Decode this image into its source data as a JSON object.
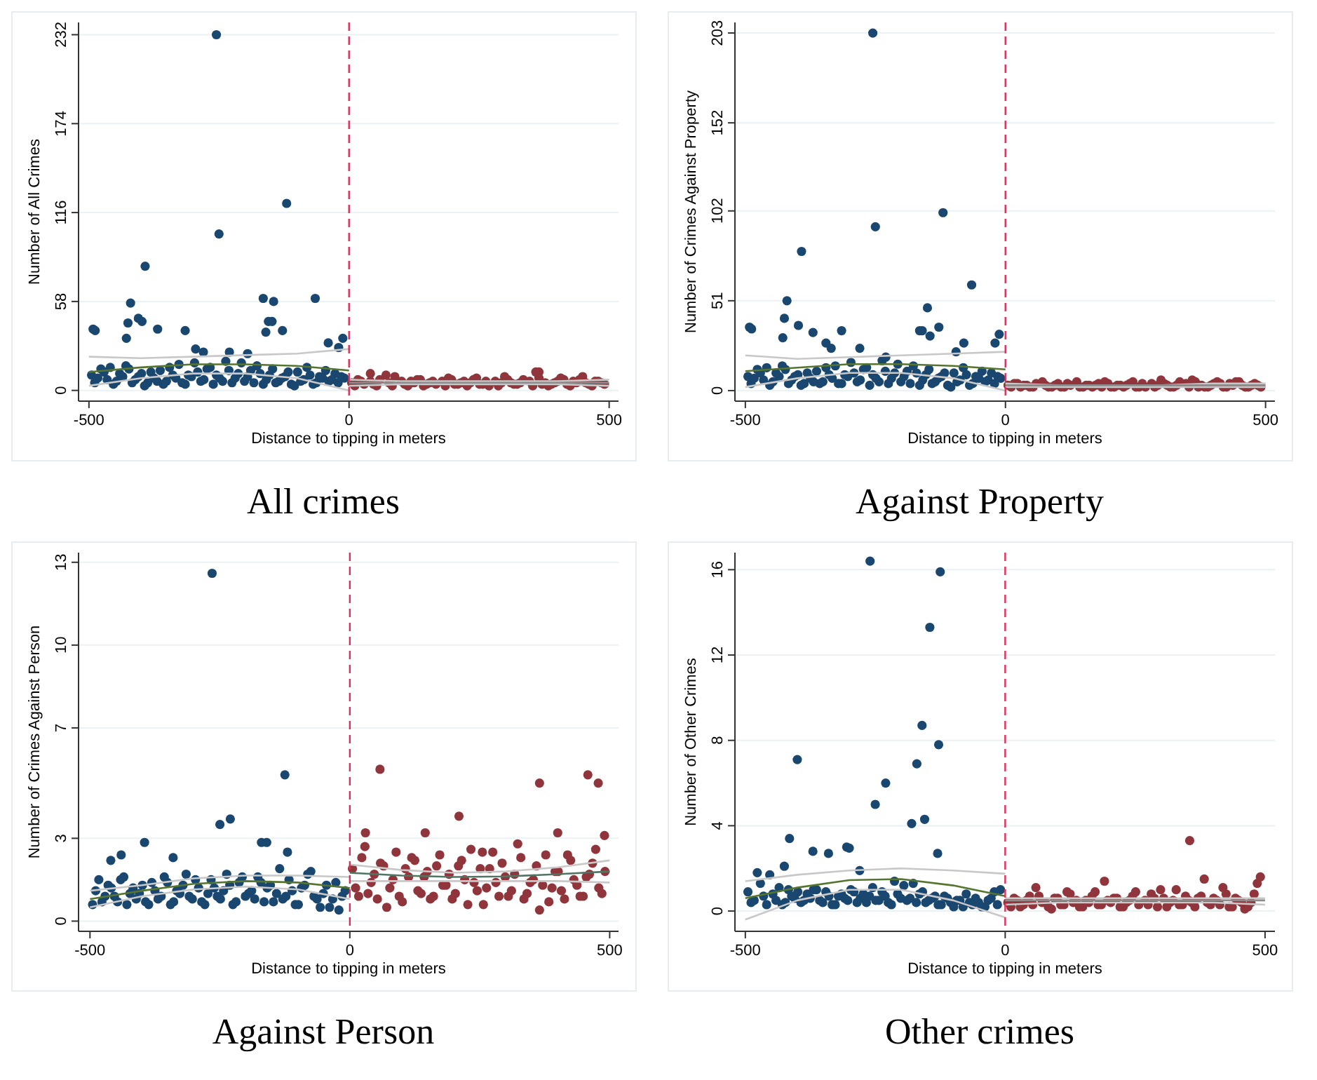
{
  "chart_data": [
    {
      "type": "scatter",
      "title": "All crimes",
      "xlabel": "Distance to tipping in meters",
      "ylabel": "Number of All Crimes",
      "xlim": [
        -520,
        518
      ],
      "xticks": [
        -500,
        0,
        500
      ],
      "ylim": [
        -7,
        240
      ],
      "yticks": [
        0,
        58,
        116,
        174,
        232
      ],
      "grid": "y",
      "ref_lines": [
        {
          "axis": "x",
          "value": 0,
          "color": "#e0305a",
          "line_style": "dashed"
        }
      ],
      "series": [
        {
          "color": "#1a476f",
          "marker": "circle",
          "x": [
            -495,
            -483,
            -471,
            -459,
            -447,
            -435,
            -423,
            -411,
            -399,
            -387,
            -375,
            -363,
            -351,
            -339,
            -327,
            -315,
            -303,
            -291,
            -279,
            -267,
            -255,
            -243,
            -231,
            -219,
            -207,
            -195,
            -183,
            -171,
            -159,
            -147,
            -135,
            -123,
            -111,
            -99,
            -87,
            -75,
            -63,
            -51,
            -39,
            -27,
            -15,
            -489,
            -477,
            -465,
            -453,
            -441,
            -429,
            -417,
            -405,
            -393,
            -381,
            -369,
            -357,
            -345,
            -333,
            -321,
            -309,
            -297,
            -285,
            -273,
            -261,
            -249,
            -237,
            -225,
            -213,
            -201,
            -189,
            -177,
            -165,
            -153,
            -141,
            -129,
            -117,
            -105,
            -93,
            -81,
            -69,
            -57,
            -45,
            -33,
            -21,
            -9,
            -492,
            -488,
            -428,
            -425,
            -420,
            -398,
            -392,
            -405,
            -368,
            -315,
            -295,
            -255,
            -250,
            -120,
            -155,
            -165,
            -148,
            -145,
            -160,
            -128,
            -65,
            -280,
            -12,
            -20,
            -40,
            -195,
            -230
          ],
          "values": [
            10,
            8,
            12,
            15,
            6,
            9,
            14,
            7,
            11,
            5,
            8,
            13,
            6,
            10,
            17,
            4,
            9,
            12,
            7,
            15,
            10,
            6,
            13,
            8,
            18,
            9,
            5,
            11,
            7,
            14,
            6,
            9,
            4,
            12,
            7,
            10,
            5,
            8,
            6,
            11,
            9,
            5,
            14,
            7,
            4,
            11,
            16,
            5,
            9,
            3,
            12,
            6,
            4,
            15,
            8,
            5,
            10,
            18,
            6,
            14,
            4,
            8,
            19,
            5,
            11,
            6,
            13,
            16,
            4,
            10,
            5,
            8,
            12,
            3,
            6,
            15,
            4,
            9,
            13,
            7,
            5,
            8,
            40,
            39,
            34,
            44,
            57,
            45,
            81,
            47,
            40,
            39,
            27,
            232,
            102,
            122,
            45,
            60,
            45,
            58,
            38,
            39,
            60,
            25,
            34,
            28,
            31,
            24,
            25
          ]
        },
        {
          "color": "#90353b",
          "marker": "circle",
          "x": [
            5,
            17,
            29,
            41,
            53,
            77,
            101,
            113,
            125,
            137,
            149,
            161,
            185,
            197,
            209,
            221,
            233,
            245,
            257,
            269,
            281,
            293,
            305,
            317,
            329,
            353,
            365,
            377,
            389,
            401,
            413,
            425,
            437,
            449,
            461,
            473,
            485,
            11,
            23,
            47,
            59,
            71,
            83,
            107,
            119,
            131,
            143,
            155,
            167,
            179,
            191,
            203,
            215,
            227,
            239,
            251,
            263,
            287,
            299,
            311,
            323,
            335,
            347,
            359,
            371,
            383,
            395,
            407,
            419,
            431,
            443,
            455,
            467,
            479,
            491,
            41,
            365,
            88
          ],
          "values": [
            5,
            7,
            4,
            6,
            3,
            5,
            6,
            3,
            5,
            7,
            4,
            6,
            3,
            7,
            4,
            6,
            5,
            8,
            4,
            3,
            6,
            5,
            7,
            4,
            5,
            3,
            8,
            5,
            4,
            6,
            7,
            3,
            5,
            9,
            4,
            6,
            5,
            3,
            6,
            4,
            7,
            10,
            3,
            4,
            6,
            7,
            3,
            5,
            4,
            6,
            8,
            4,
            5,
            3,
            7,
            4,
            6,
            3,
            9,
            5,
            4,
            7,
            6,
            12,
            4,
            3,
            5,
            8,
            4,
            6,
            7,
            5,
            3,
            6,
            4,
            11,
            12,
            9
          ]
        },
        {
          "type": "line",
          "color": "#c8c8c8",
          "marker": "none",
          "x": [
            -500,
            -400,
            -300,
            -200,
            -100,
            0
          ],
          "values": [
            3,
            8,
            11,
            11,
            8,
            0
          ]
        },
        {
          "type": "line",
          "color": "#c8c8c8",
          "marker": "none",
          "x": [
            -500,
            -400,
            -300,
            -200,
            -100,
            0
          ],
          "values": [
            22,
            21,
            22,
            23,
            24,
            27
          ]
        },
        {
          "type": "line",
          "color": "#c8c8c8",
          "marker": "none",
          "x": [
            0,
            100,
            200,
            300,
            400,
            500
          ],
          "values": [
            3,
            4,
            4,
            4,
            4,
            3
          ]
        },
        {
          "type": "line",
          "color": "#c8c8c8",
          "marker": "none",
          "x": [
            0,
            100,
            200,
            300,
            400,
            500
          ],
          "values": [
            7,
            6,
            6,
            6,
            6,
            7
          ]
        },
        {
          "type": "line",
          "color": "#55752f",
          "marker": "none",
          "x": [
            -500,
            -400,
            -300,
            -200,
            -100,
            0
          ],
          "values": [
            12,
            15,
            17,
            17,
            16,
            13
          ]
        },
        {
          "type": "line",
          "color": "#8c8c8c",
          "marker": "none",
          "x": [
            0,
            100,
            200,
            300,
            400,
            500
          ],
          "values": [
            5,
            5,
            5,
            5,
            5,
            5
          ]
        }
      ]
    },
    {
      "type": "scatter",
      "title": "Against Property",
      "xlabel": "Distance to tipping in meters",
      "ylabel": "Number of Crimes Against Property",
      "xlim": [
        -520,
        518
      ],
      "xticks": [
        -500,
        0,
        500
      ],
      "ylim": [
        -6,
        209
      ],
      "yticks": [
        0,
        51,
        102,
        152,
        203
      ],
      "grid": "y",
      "ref_lines": [
        {
          "axis": "x",
          "value": 0,
          "color": "#e0305a",
          "line_style": "dashed"
        }
      ],
      "series": [
        {
          "color": "#1a476f",
          "marker": "circle",
          "x": [
            -495,
            -483,
            -471,
            -459,
            -447,
            -435,
            -423,
            -411,
            -399,
            -387,
            -375,
            -363,
            -351,
            -339,
            -327,
            -315,
            -303,
            -291,
            -279,
            -267,
            -255,
            -243,
            -231,
            -219,
            -207,
            -195,
            -183,
            -171,
            -159,
            -147,
            -135,
            -123,
            -111,
            -99,
            -87,
            -75,
            -63,
            -51,
            -39,
            -27,
            -15,
            -489,
            -477,
            -465,
            -453,
            -441,
            -429,
            -417,
            -405,
            -393,
            -381,
            -369,
            -357,
            -345,
            -333,
            -321,
            -309,
            -297,
            -285,
            -273,
            -261,
            -249,
            -237,
            -225,
            -213,
            -201,
            -189,
            -177,
            -165,
            -153,
            -141,
            -129,
            -117,
            -105,
            -93,
            -81,
            -69,
            -57,
            -45,
            -33,
            -21,
            -9,
            -492,
            -488,
            -428,
            -425,
            -420,
            -398,
            -392,
            -370,
            -345,
            -335,
            -315,
            -255,
            -250,
            -120,
            -165,
            -160,
            -150,
            -145,
            -128,
            -65,
            -80,
            -12,
            -20,
            -95,
            -280,
            -230
          ],
          "values": [
            8,
            7,
            10,
            13,
            5,
            8,
            12,
            6,
            9,
            4,
            7,
            11,
            5,
            9,
            14,
            4,
            8,
            10,
            6,
            13,
            9,
            5,
            11,
            7,
            15,
            8,
            4,
            10,
            6,
            12,
            5,
            8,
            3,
            10,
            6,
            9,
            4,
            7,
            5,
            10,
            8,
            4,
            12,
            6,
            3,
            10,
            14,
            4,
            8,
            3,
            10,
            5,
            4,
            13,
            7,
            4,
            9,
            16,
            5,
            12,
            3,
            7,
            17,
            4,
            10,
            5,
            11,
            14,
            3,
            9,
            4,
            7,
            10,
            2,
            5,
            13,
            3,
            8,
            11,
            6,
            4,
            7,
            36,
            35,
            30,
            41,
            51,
            37,
            79,
            33,
            27,
            24,
            34,
            203,
            93,
            101,
            34,
            34,
            47,
            31,
            36,
            60,
            27,
            32,
            27,
            22,
            24,
            19
          ]
        },
        {
          "color": "#90353b",
          "marker": "circle",
          "x": [
            5,
            17,
            29,
            41,
            53,
            77,
            89,
            101,
            113,
            125,
            137,
            149,
            161,
            173,
            185,
            197,
            209,
            221,
            233,
            245,
            257,
            269,
            281,
            293,
            305,
            317,
            329,
            353,
            365,
            377,
            389,
            401,
            413,
            425,
            437,
            449,
            461,
            473,
            485,
            11,
            23,
            35,
            47,
            59,
            71,
            83,
            95,
            107,
            119,
            143,
            155,
            167,
            179,
            191,
            203,
            215,
            227,
            239,
            251,
            263,
            287,
            299,
            311,
            323,
            335,
            347,
            359,
            371,
            383,
            395,
            407,
            419,
            431,
            443,
            455,
            467,
            479,
            491
          ],
          "values": [
            3,
            4,
            2,
            3,
            2,
            3,
            2,
            4,
            2,
            3,
            5,
            2,
            3,
            3,
            2,
            4,
            2,
            3,
            3,
            5,
            2,
            2,
            4,
            3,
            4,
            2,
            3,
            2,
            5,
            3,
            2,
            4,
            4,
            2,
            3,
            5,
            2,
            3,
            3,
            2,
            4,
            3,
            2,
            4,
            5,
            2,
            3,
            2,
            4,
            2,
            3,
            2,
            4,
            5,
            2,
            3,
            2,
            4,
            2,
            4,
            2,
            6,
            3,
            2,
            5,
            4,
            6,
            2,
            2,
            3,
            5,
            2,
            4,
            5,
            3,
            2,
            4,
            2
          ]
        },
        {
          "type": "line",
          "color": "#c8c8c8",
          "marker": "none",
          "x": [
            -500,
            -400,
            -300,
            -200,
            -100,
            0
          ],
          "values": [
            2,
            7,
            10,
            10,
            7,
            0
          ]
        },
        {
          "type": "line",
          "color": "#c8c8c8",
          "marker": "none",
          "x": [
            -500,
            -400,
            -300,
            -200,
            -100,
            0
          ],
          "values": [
            20,
            18,
            19,
            20,
            21,
            22
          ]
        },
        {
          "type": "line",
          "color": "#c8c8c8",
          "marker": "none",
          "x": [
            0,
            100,
            200,
            300,
            400,
            500
          ],
          "values": [
            2,
            2,
            2,
            2,
            2,
            2
          ]
        },
        {
          "type": "line",
          "color": "#c8c8c8",
          "marker": "none",
          "x": [
            0,
            100,
            200,
            300,
            400,
            500
          ],
          "values": [
            4,
            3,
            3,
            3,
            4,
            4
          ]
        },
        {
          "type": "line",
          "color": "#55752f",
          "marker": "none",
          "x": [
            -500,
            -400,
            -300,
            -200,
            -100,
            0
          ],
          "values": [
            11,
            13,
            15,
            15,
            14,
            12
          ]
        },
        {
          "type": "line",
          "color": "#8c8c8c",
          "marker": "none",
          "x": [
            0,
            100,
            200,
            300,
            400,
            500
          ],
          "values": [
            3,
            3,
            3,
            3,
            3,
            3
          ]
        }
      ]
    },
    {
      "type": "scatter",
      "title": "Against Person",
      "xlabel": "Distance to tipping in meters",
      "ylabel": "Number of Crimes Against Person",
      "xlim": [
        -522,
        517
      ],
      "xticks": [
        -500,
        0,
        500
      ],
      "ylim": [
        -0.37,
        13.35
      ],
      "yticks": [
        0,
        3,
        7,
        10,
        13
      ],
      "grid": "y",
      "ref_lines": [
        {
          "axis": "x",
          "value": 0,
          "color": "#e0305a",
          "line_style": "dashed"
        }
      ],
      "series": [
        {
          "color": "#1a476f",
          "marker": "circle",
          "x": [
            -495,
            -483,
            -471,
            -459,
            -447,
            -435,
            -423,
            -411,
            -399,
            -387,
            -375,
            -363,
            -351,
            -339,
            -327,
            -315,
            -303,
            -291,
            -279,
            -267,
            -255,
            -243,
            -231,
            -219,
            -207,
            -195,
            -183,
            -171,
            -159,
            -147,
            -135,
            -123,
            -111,
            -99,
            -87,
            -75,
            -63,
            -51,
            -39,
            -27,
            -15,
            -489,
            -477,
            -465,
            -453,
            -441,
            -429,
            -417,
            -405,
            -393,
            -381,
            -369,
            -357,
            -345,
            -333,
            -321,
            -309,
            -297,
            -285,
            -273,
            -261,
            -249,
            -237,
            -225,
            -213,
            -201,
            -189,
            -177,
            -165,
            -153,
            -141,
            -129,
            -117,
            -105,
            -93,
            -81,
            -69,
            -57,
            -45,
            -33,
            -21,
            -9,
            -265,
            -250,
            -230,
            -125,
            -395,
            -170,
            -160,
            -440,
            -460,
            -340,
            -120
          ],
          "values": [
            0.6,
            1.5,
            0.9,
            1.2,
            0.7,
            1.6,
            1.0,
            0.8,
            1.3,
            0.6,
            1.1,
            0.9,
            1.4,
            0.7,
            1.0,
            1.7,
            0.8,
            1.2,
            0.6,
            1.5,
            0.9,
            1.1,
            1.3,
            0.7,
            1.6,
            1.0,
            0.8,
            1.4,
            1.2,
            0.7,
            1.9,
            0.9,
            1.1,
            0.6,
            1.3,
            1.8,
            0.8,
            1.0,
            0.5,
            1.4,
            0.9,
            1.1,
            0.7,
            1.3,
            0.9,
            1.5,
            0.6,
            1.2,
            1.0,
            0.7,
            1.4,
            0.8,
            1.6,
            0.6,
            1.1,
            1.3,
            0.9,
            1.5,
            0.7,
            1.0,
            1.2,
            0.8,
            1.7,
            0.6,
            1.4,
            0.9,
            1.1,
            1.6,
            0.7,
            1.3,
            1.0,
            0.8,
            1.5,
            0.6,
            1.2,
            1.7,
            0.9,
            0.5,
            1.3,
            0.8,
            0.4,
            1.1,
            12.6,
            3.5,
            3.7,
            5.3,
            2.85,
            2.85,
            2.85,
            2.4,
            2.2,
            2.3,
            2.5
          ]
        },
        {
          "color": "#90353b",
          "marker": "circle",
          "x": [
            5,
            17,
            29,
            41,
            53,
            65,
            77,
            89,
            101,
            113,
            125,
            137,
            149,
            161,
            173,
            185,
            197,
            209,
            221,
            233,
            245,
            257,
            269,
            281,
            293,
            305,
            317,
            329,
            341,
            353,
            365,
            377,
            389,
            401,
            413,
            425,
            437,
            449,
            461,
            473,
            485,
            11,
            23,
            35,
            47,
            59,
            71,
            83,
            95,
            107,
            119,
            131,
            143,
            155,
            167,
            179,
            191,
            203,
            215,
            227,
            239,
            251,
            263,
            275,
            287,
            299,
            311,
            323,
            335,
            347,
            359,
            371,
            383,
            395,
            407,
            419,
            431,
            443,
            455,
            467,
            479,
            491,
            58,
            210,
            365,
            458,
            478,
            30,
            145,
            255,
            400,
            490
          ],
          "values": [
            1.9,
            0.9,
            2.7,
            1.4,
            0.8,
            2.0,
            1.2,
            2.5,
            0.7,
            1.6,
            2.2,
            1.0,
            1.8,
            0.9,
            2.4,
            1.3,
            0.8,
            2.0,
            1.5,
            2.6,
            1.1,
            0.6,
            1.9,
            1.4,
            2.1,
            0.9,
            1.7,
            2.3,
            1.0,
            1.5,
            0.4,
            2.4,
            1.2,
            1.8,
            0.8,
            2.2,
            1.3,
            0.9,
            1.7,
            2.6,
            1.0,
            1.2,
            2.3,
            1.0,
            1.7,
            2.1,
            0.5,
            1.5,
            0.9,
            1.9,
            2.3,
            1.1,
            1.6,
            0.8,
            2.0,
            1.3,
            1.7,
            1.0,
            2.2,
            0.6,
            1.4,
            1.9,
            1.2,
            2.5,
            0.9,
            1.6,
            1.1,
            2.8,
            0.8,
            1.4,
            2.0,
            1.3,
            0.7,
            1.8,
            1.1,
            2.4,
            1.5,
            0.9,
            1.6,
            2.1,
            1.2,
            1.8,
            5.5,
            3.8,
            5.0,
            5.3,
            5.0,
            3.2,
            3.2,
            2.5,
            3.2,
            3.1
          ]
        },
        {
          "type": "line",
          "color": "#c8c8c8",
          "marker": "none",
          "x": [
            -500,
            -400,
            -300,
            -200,
            -100,
            0
          ],
          "values": [
            0.5,
            0.9,
            1.15,
            1.25,
            1.15,
            0.8
          ]
        },
        {
          "type": "line",
          "color": "#c8c8c8",
          "marker": "none",
          "x": [
            -500,
            -400,
            -300,
            -200,
            -100,
            0
          ],
          "values": [
            1.1,
            1.3,
            1.55,
            1.65,
            1.65,
            1.6
          ]
        },
        {
          "type": "line",
          "color": "#c8c8c8",
          "marker": "none",
          "x": [
            0,
            100,
            200,
            300,
            400,
            500
          ],
          "values": [
            1.45,
            1.45,
            1.45,
            1.45,
            1.45,
            1.4
          ]
        },
        {
          "type": "line",
          "color": "#c8c8c8",
          "marker": "none",
          "x": [
            0,
            100,
            200,
            300,
            400,
            500
          ],
          "values": [
            2.05,
            1.85,
            1.75,
            1.8,
            1.95,
            2.2
          ]
        },
        {
          "type": "line",
          "color": "#55752f",
          "marker": "none",
          "x": [
            -500,
            -400,
            -300,
            -200,
            -100,
            0
          ],
          "values": [
            0.8,
            1.1,
            1.35,
            1.45,
            1.4,
            1.2
          ]
        },
        {
          "type": "line",
          "color": "#4f7563",
          "marker": "none",
          "x": [
            0,
            100,
            200,
            300,
            400,
            500
          ],
          "values": [
            1.75,
            1.65,
            1.6,
            1.62,
            1.7,
            1.8
          ]
        }
      ]
    },
    {
      "type": "scatter",
      "title": "Other crimes",
      "xlabel": "Distance to tipping in meters",
      "ylabel": "Number of Other Crimes",
      "xlim": [
        -520,
        519
      ],
      "xticks": [
        -500,
        0,
        500
      ],
      "ylim": [
        -0.95,
        16.8
      ],
      "yticks": [
        0,
        4,
        8,
        12,
        16
      ],
      "grid": "y",
      "ref_lines": [
        {
          "axis": "x",
          "value": 0,
          "color": "#e0305a",
          "line_style": "dashed"
        }
      ],
      "series": [
        {
          "color": "#1a476f",
          "marker": "circle",
          "x": [
            -495,
            -483,
            -471,
            -459,
            -447,
            -435,
            -423,
            -411,
            -399,
            -387,
            -375,
            -363,
            -351,
            -339,
            -327,
            -315,
            -303,
            -291,
            -279,
            -267,
            -255,
            -243,
            -231,
            -219,
            -207,
            -195,
            -183,
            -171,
            -159,
            -147,
            -135,
            -123,
            -111,
            -99,
            -87,
            -75,
            -63,
            -51,
            -39,
            -27,
            -15,
            -489,
            -477,
            -465,
            -453,
            -441,
            -429,
            -417,
            -405,
            -393,
            -381,
            -369,
            -357,
            -345,
            -333,
            -321,
            -309,
            -297,
            -285,
            -273,
            -261,
            -249,
            -237,
            -225,
            -213,
            -201,
            -189,
            -177,
            -165,
            -153,
            -141,
            -129,
            -117,
            -105,
            -93,
            -81,
            -69,
            -57,
            -45,
            -33,
            -21,
            -9,
            -260,
            -125,
            -145,
            -160,
            -128,
            -170,
            -230,
            -250,
            -180,
            -155,
            -400,
            -415,
            -370,
            -340,
            -305,
            -300,
            -130,
            -425,
            -280
          ],
          "values": [
            0.9,
            0.5,
            1.3,
            0.3,
            0.8,
            1.1,
            0.4,
            0.7,
            0.9,
            0.5,
            0.6,
            1.0,
            0.4,
            0.7,
            0.3,
            0.8,
            0.5,
            0.9,
            0.6,
            0.4,
            1.1,
            0.5,
            0.7,
            0.3,
            0.8,
            1.2,
            0.6,
            0.4,
            0.9,
            0.5,
            0.7,
            0.3,
            0.6,
            0.2,
            0.5,
            0.8,
            0.3,
            0.4,
            0.2,
            0.6,
            0.3,
            0.4,
            1.8,
            0.7,
            1.7,
            0.5,
            0.3,
            1.0,
            0.6,
            0.4,
            0.8,
            1.0,
            0.5,
            0.9,
            0.3,
            0.7,
            0.6,
            1.0,
            0.4,
            0.8,
            0.7,
            0.5,
            0.9,
            0.4,
            1.4,
            0.6,
            0.5,
            1.3,
            0.8,
            0.4,
            0.6,
            0.3,
            0.7,
            0.4,
            0.5,
            0.2,
            0.4,
            0.6,
            0.2,
            0.5,
            0.9,
            1.0,
            16.4,
            15.9,
            13.3,
            8.7,
            7.8,
            6.9,
            6.0,
            5.0,
            4.1,
            4.3,
            7.1,
            3.4,
            2.8,
            2.7,
            3.0,
            2.95,
            2.7,
            2.1,
            1.9
          ]
        },
        {
          "color": "#90353b",
          "marker": "circle",
          "x": [
            5,
            17,
            29,
            41,
            53,
            65,
            77,
            89,
            101,
            113,
            125,
            137,
            149,
            161,
            173,
            185,
            197,
            209,
            221,
            233,
            245,
            257,
            269,
            281,
            293,
            305,
            317,
            329,
            341,
            353,
            365,
            377,
            389,
            401,
            413,
            425,
            437,
            449,
            461,
            473,
            485,
            11,
            23,
            35,
            47,
            59,
            71,
            83,
            95,
            107,
            119,
            131,
            143,
            155,
            167,
            179,
            191,
            203,
            215,
            227,
            239,
            251,
            275,
            287,
            299,
            311,
            323,
            335,
            347,
            359,
            371,
            383,
            395,
            407,
            419,
            431,
            443,
            455,
            467,
            479,
            491,
            355
          ],
          "values": [
            0.4,
            0.6,
            0.2,
            0.5,
            0.3,
            0.7,
            0.4,
            0.1,
            0.6,
            0.3,
            0.8,
            0.5,
            0.2,
            0.4,
            0.9,
            0.3,
            0.5,
            0.6,
            0.2,
            0.4,
            0.7,
            0.3,
            0.5,
            0.8,
            0.2,
            0.6,
            0.4,
            1.0,
            0.3,
            0.5,
            0.2,
            0.7,
            0.4,
            0.6,
            0.3,
            0.8,
            0.2,
            0.5,
            0.1,
            0.4,
            1.3,
            0.2,
            0.5,
            0.3,
            0.7,
            1.1,
            0.4,
            0.2,
            0.6,
            0.3,
            0.9,
            0.4,
            0.2,
            0.5,
            0.7,
            0.3,
            1.4,
            0.4,
            0.6,
            0.2,
            0.5,
            0.9,
            0.3,
            0.6,
            1.0,
            0.2,
            0.5,
            0.3,
            0.7,
            0.4,
            0.6,
            1.5,
            0.3,
            0.5,
            1.1,
            0.2,
            0.6,
            0.4,
            0.2,
            0.8,
            1.6,
            3.3
          ]
        },
        {
          "type": "line",
          "color": "#c8c8c8",
          "marker": "none",
          "x": [
            -500,
            -400,
            -300,
            -200,
            -100,
            0
          ],
          "values": [
            -0.4,
            0.5,
            1.0,
            1.0,
            0.5,
            -0.3
          ]
        },
        {
          "type": "line",
          "color": "#c8c8c8",
          "marker": "none",
          "x": [
            -500,
            -400,
            -300,
            -200,
            -100,
            0
          ],
          "values": [
            1.4,
            1.7,
            1.9,
            2.0,
            1.9,
            1.75
          ]
        },
        {
          "type": "line",
          "color": "#c8c8c8",
          "marker": "none",
          "x": [
            0,
            100,
            200,
            300,
            400,
            500
          ],
          "values": [
            0.3,
            0.4,
            0.4,
            0.4,
            0.4,
            0.3
          ]
        },
        {
          "type": "line",
          "color": "#c8c8c8",
          "marker": "none",
          "x": [
            0,
            100,
            200,
            300,
            400,
            500
          ],
          "values": [
            0.6,
            0.6,
            0.6,
            0.6,
            0.6,
            0.6
          ]
        },
        {
          "type": "line",
          "color": "#55752f",
          "marker": "none",
          "x": [
            -500,
            -400,
            -300,
            -200,
            -100,
            0
          ],
          "values": [
            0.6,
            1.1,
            1.45,
            1.5,
            1.2,
            0.7
          ]
        },
        {
          "type": "line",
          "color": "#8c8c8c",
          "marker": "none",
          "x": [
            0,
            100,
            200,
            300,
            400,
            500
          ],
          "values": [
            0.5,
            0.5,
            0.5,
            0.5,
            0.5,
            0.5
          ]
        }
      ]
    }
  ]
}
